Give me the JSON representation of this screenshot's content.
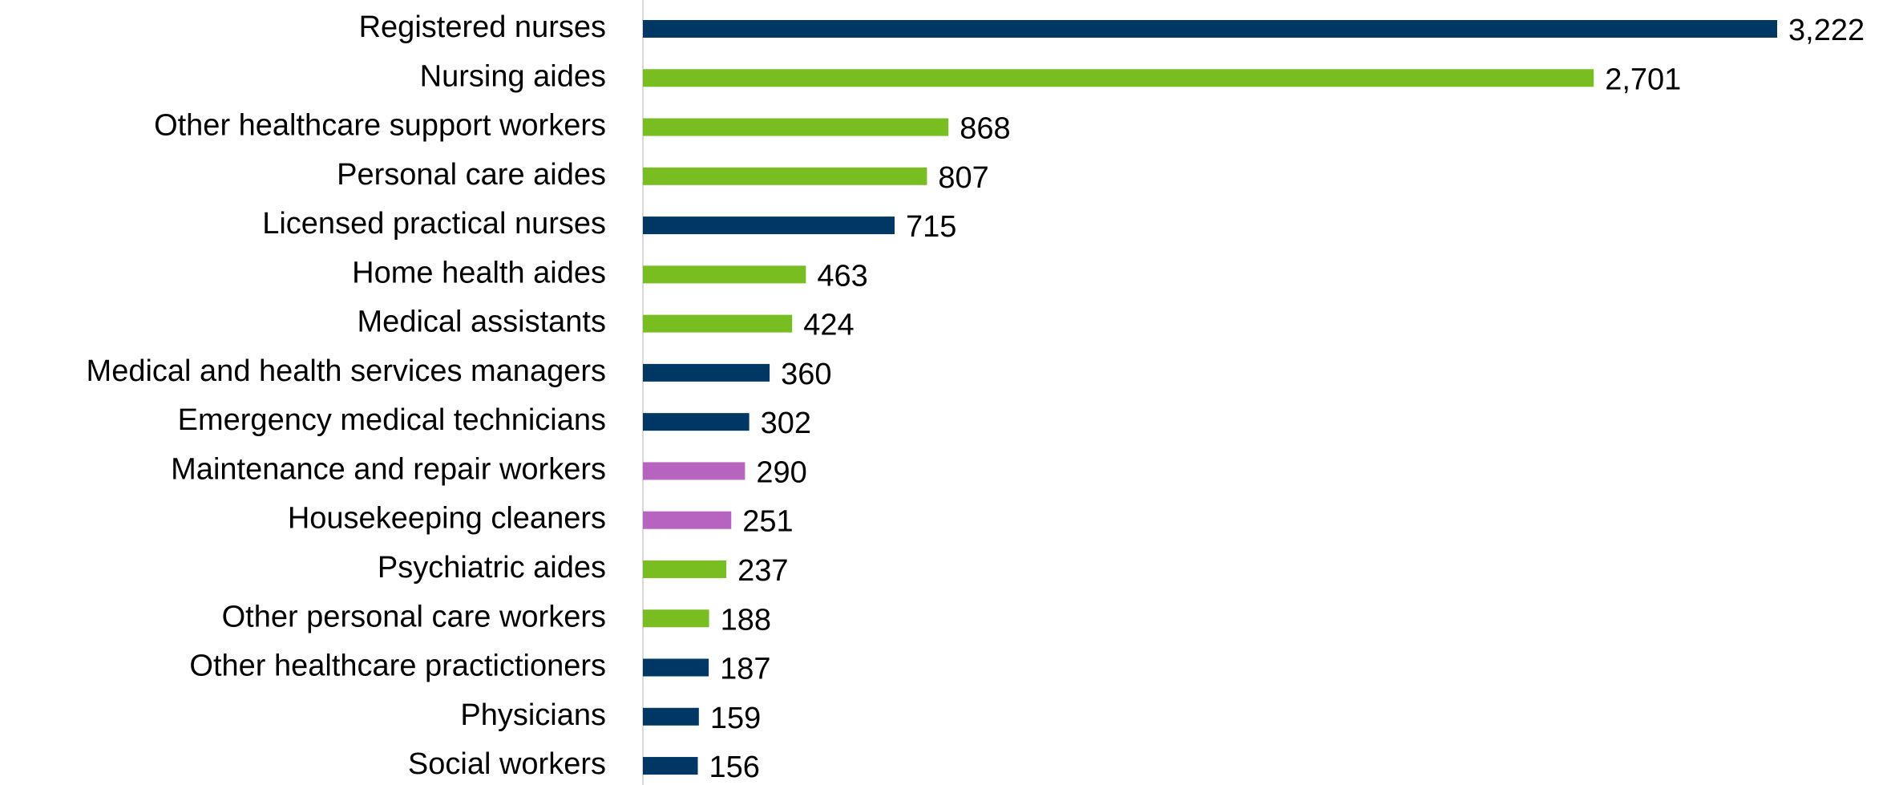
{
  "chart_data": {
    "type": "bar",
    "orientation": "horizontal",
    "categories": [
      "Registered nurses",
      "Nursing aides",
      "Other healthcare support workers",
      "Personal care aides",
      "Licensed practical nurses",
      "Home health aides",
      "Medical assistants",
      "Medical and health services managers",
      "Emergency medical technicians",
      "Maintenance and repair workers",
      "Housekeeping cleaners",
      "Psychiatric aides",
      "Other personal care workers",
      "Other healthcare practictioners",
      "Physicians",
      "Social workers"
    ],
    "values": [
      3222,
      2701,
      868,
      807,
      715,
      463,
      424,
      360,
      302,
      290,
      251,
      237,
      188,
      187,
      159,
      156
    ],
    "value_labels": [
      "3,222",
      "2,701",
      "868",
      "807",
      "715",
      "463",
      "424",
      "360",
      "302",
      "290",
      "251",
      "237",
      "188",
      "187",
      "159",
      "156"
    ],
    "colors": [
      "#003865",
      "#78be20",
      "#78be20",
      "#78be20",
      "#003865",
      "#78be20",
      "#78be20",
      "#003865",
      "#003865",
      "#b764c0",
      "#b764c0",
      "#78be20",
      "#78be20",
      "#003865",
      "#003865",
      "#003865"
    ]
  }
}
